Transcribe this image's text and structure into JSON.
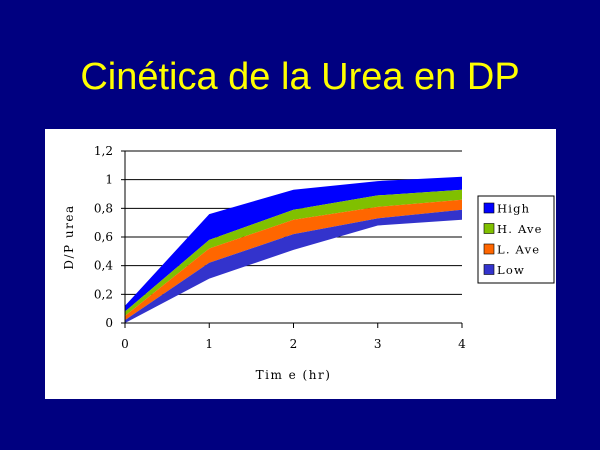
{
  "slide": {
    "title": "Cinética de la Urea en DP"
  },
  "chart_data": {
    "type": "area",
    "x": [
      0,
      1,
      2,
      3,
      4
    ],
    "xlabel": "Tim e (hr)",
    "ylabel": "D/P urea",
    "xlim": [
      0,
      4
    ],
    "ylim": [
      0,
      1.2
    ],
    "x_ticks": [
      "0",
      "1",
      "2",
      "3",
      "4"
    ],
    "y_ticks": [
      "0",
      "0,2",
      "0,4",
      "0,6",
      "0,8",
      "1",
      "1,2"
    ],
    "grid": true,
    "legend_position": "right",
    "series": [
      {
        "name": "High",
        "color": "#0000ff",
        "values": [
          0.12,
          0.76,
          0.93,
          0.99,
          1.02
        ]
      },
      {
        "name": "H. Ave",
        "color": "#80c000",
        "values": [
          0.08,
          0.58,
          0.79,
          0.89,
          0.93
        ]
      },
      {
        "name": "L. Ave",
        "color": "#ff6600",
        "values": [
          0.05,
          0.52,
          0.72,
          0.81,
          0.86
        ]
      },
      {
        "name": "Low",
        "color": "#3333cc",
        "values": [
          0.02,
          0.42,
          0.62,
          0.73,
          0.79
        ]
      }
    ],
    "lower_bound": {
      "color": "#3333cc",
      "values": [
        0.0,
        0.31,
        0.51,
        0.68,
        0.72
      ]
    }
  }
}
